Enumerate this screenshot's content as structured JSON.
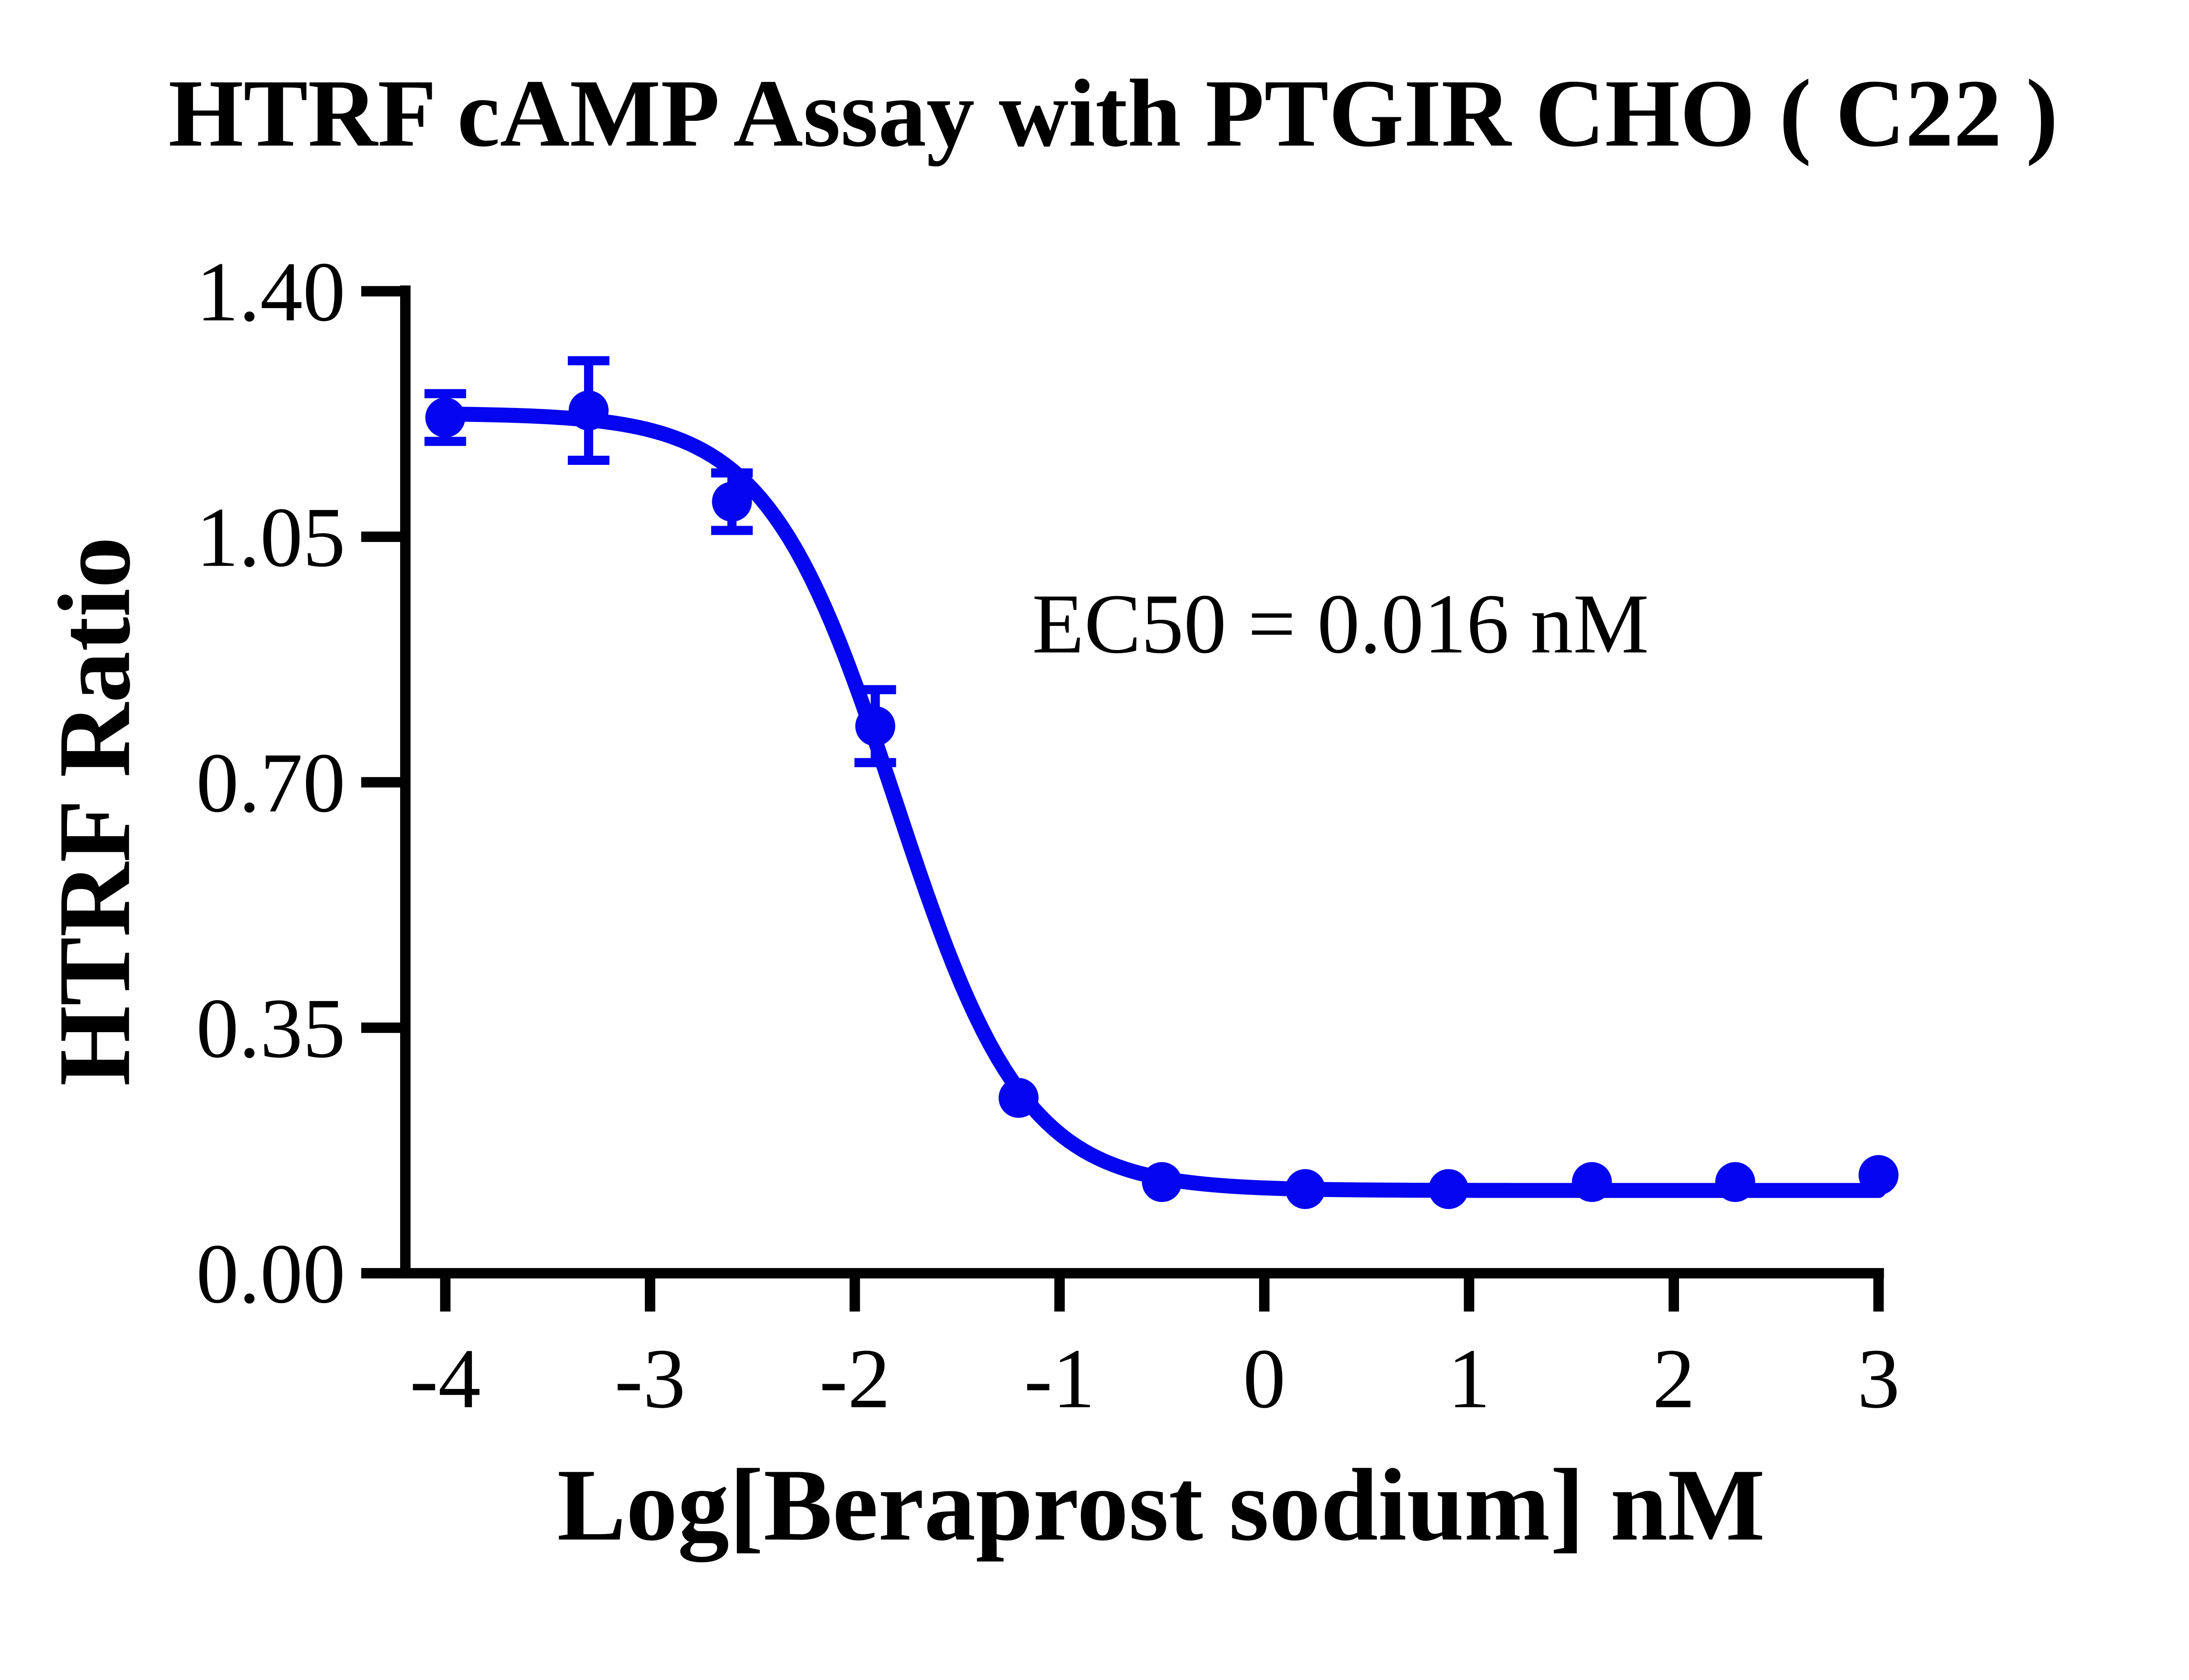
{
  "chart_data": {
    "type": "scatter-line",
    "title": "HTRF cAMP Assay with PTGIR CHO ( C22 )",
    "xlabel": "Log[Beraprost sodium] nM",
    "ylabel": "HTRF Ratio",
    "annotation": "EC50 = 0.016 nM",
    "x": [
      -4.0,
      -3.3,
      -2.6,
      -1.9,
      -1.2,
      -0.5,
      0.2,
      0.9,
      1.6,
      2.3,
      3.0
    ],
    "y": [
      1.22,
      1.23,
      1.1,
      0.78,
      0.25,
      0.13,
      0.12,
      0.12,
      0.13,
      0.13,
      0.14
    ],
    "y_err": [
      0.034,
      0.071,
      0.041,
      0.052,
      0,
      0,
      0,
      0,
      0,
      0,
      0
    ],
    "fit": {
      "model": "4PL sigmoid",
      "top": 1.226,
      "bottom": 0.118,
      "log_ec50": -1.8,
      "hill_slope": 1.38,
      "ec50_nM": 0.016
    },
    "x_ticks": [
      "-4",
      "-3",
      "-2",
      "-1",
      "0",
      "1",
      "2",
      "3"
    ],
    "y_ticks": [
      "1.40",
      "1.05",
      "0.70",
      "0.35",
      "0.00"
    ],
    "xlim": [
      -4.2,
      3
    ],
    "ylim": [
      0.0,
      1.4
    ],
    "grid": false,
    "legend": "none",
    "series_color": "#0505F0",
    "axis_color": "#000000"
  }
}
